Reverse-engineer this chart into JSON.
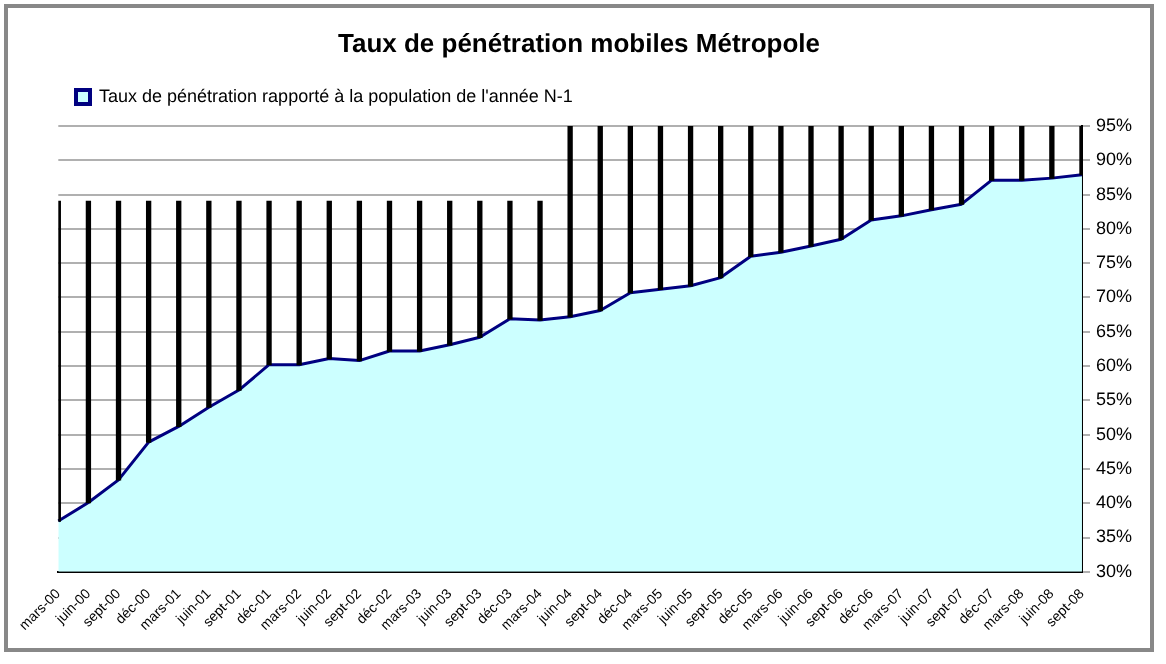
{
  "chart_data": {
    "type": "area",
    "title": "Taux de pénétration mobiles Métropole",
    "categories": [
      "mars-00",
      "juin-00",
      "sept-00",
      "déc-00",
      "mars-01",
      "juin-01",
      "sept-01",
      "déc-01",
      "mars-02",
      "juin-02",
      "sept-02",
      "déc-02",
      "mars-03",
      "juin-03",
      "sept-03",
      "déc-03",
      "mars-04",
      "juin-04",
      "sept-04",
      "déc-04",
      "mars-05",
      "juin-05",
      "sept-05",
      "déc-05",
      "mars-06",
      "juin-06",
      "sept-06",
      "déc-06",
      "mars-07",
      "juin-07",
      "sept-07",
      "déc-07",
      "mars-08",
      "juin-08",
      "sept-08"
    ],
    "series": [
      {
        "name": "Taux de pénétration rapporté à la population de l'année N-1",
        "color": "#000080",
        "values": [
          37.4,
          40.1,
          43.4,
          48.9,
          51.2,
          54,
          56.5,
          60.2,
          60.2,
          61.1,
          60.8,
          62.2,
          62.2,
          63.1,
          64.2,
          66.9,
          66.7,
          67.2,
          68.1,
          70.7,
          71.2,
          71.7,
          72.9,
          76,
          76.6,
          77.5,
          78.5,
          81.3,
          81.9,
          82.8,
          83.6,
          87.1,
          87.1,
          87.4,
          87.9
        ]
      },
      {
        "type": "bar",
        "color": "#000000",
        "base": [
          37.4,
          40.1,
          43.4,
          48.9,
          51.2,
          54,
          56.5,
          60.2,
          60.2,
          61.1,
          60.8,
          62.2,
          62.2,
          63.1,
          64.2,
          66.9,
          66.7,
          67.2,
          68.1,
          70.7,
          71.2,
          71.7,
          72.9,
          76,
          76.6,
          77.5,
          78.5,
          81.3,
          81.9,
          82.8,
          83.6,
          87.1,
          87.1,
          87.4,
          87.9
        ],
        "values": [
          46.6,
          43.9,
          40.6,
          35.1,
          32.8,
          30,
          27.5,
          23.8,
          23.8,
          22.9,
          23.2,
          21.8,
          21.8,
          20.9,
          19.8,
          17.1,
          17.3,
          27.8,
          26.9,
          24.3,
          23.8,
          23.3,
          22.1,
          19,
          18.4,
          17.5,
          16.5,
          13.7,
          13.1,
          12.2,
          11.4,
          7.9,
          7.9,
          7.6,
          7.1
        ]
      }
    ],
    "ylim": [
      30,
      95
    ],
    "yticks": [
      {
        "value": 30,
        "label": "30%"
      },
      {
        "value": 35,
        "label": "35%"
      },
      {
        "value": 40,
        "label": "40%"
      },
      {
        "value": 45,
        "label": "45%"
      },
      {
        "value": 50,
        "label": "50%"
      },
      {
        "value": 55,
        "label": "55%"
      },
      {
        "value": 60,
        "label": "60%"
      },
      {
        "value": 65,
        "label": "65%"
      },
      {
        "value": 70,
        "label": "70%"
      },
      {
        "value": 75,
        "label": "75%"
      },
      {
        "value": 80,
        "label": "80%"
      },
      {
        "value": 85,
        "label": "85%"
      },
      {
        "value": 90,
        "label": "90%"
      },
      {
        "value": 95,
        "label": "95%"
      }
    ],
    "grid": "y",
    "legend": "top left",
    "marker": "none"
  }
}
